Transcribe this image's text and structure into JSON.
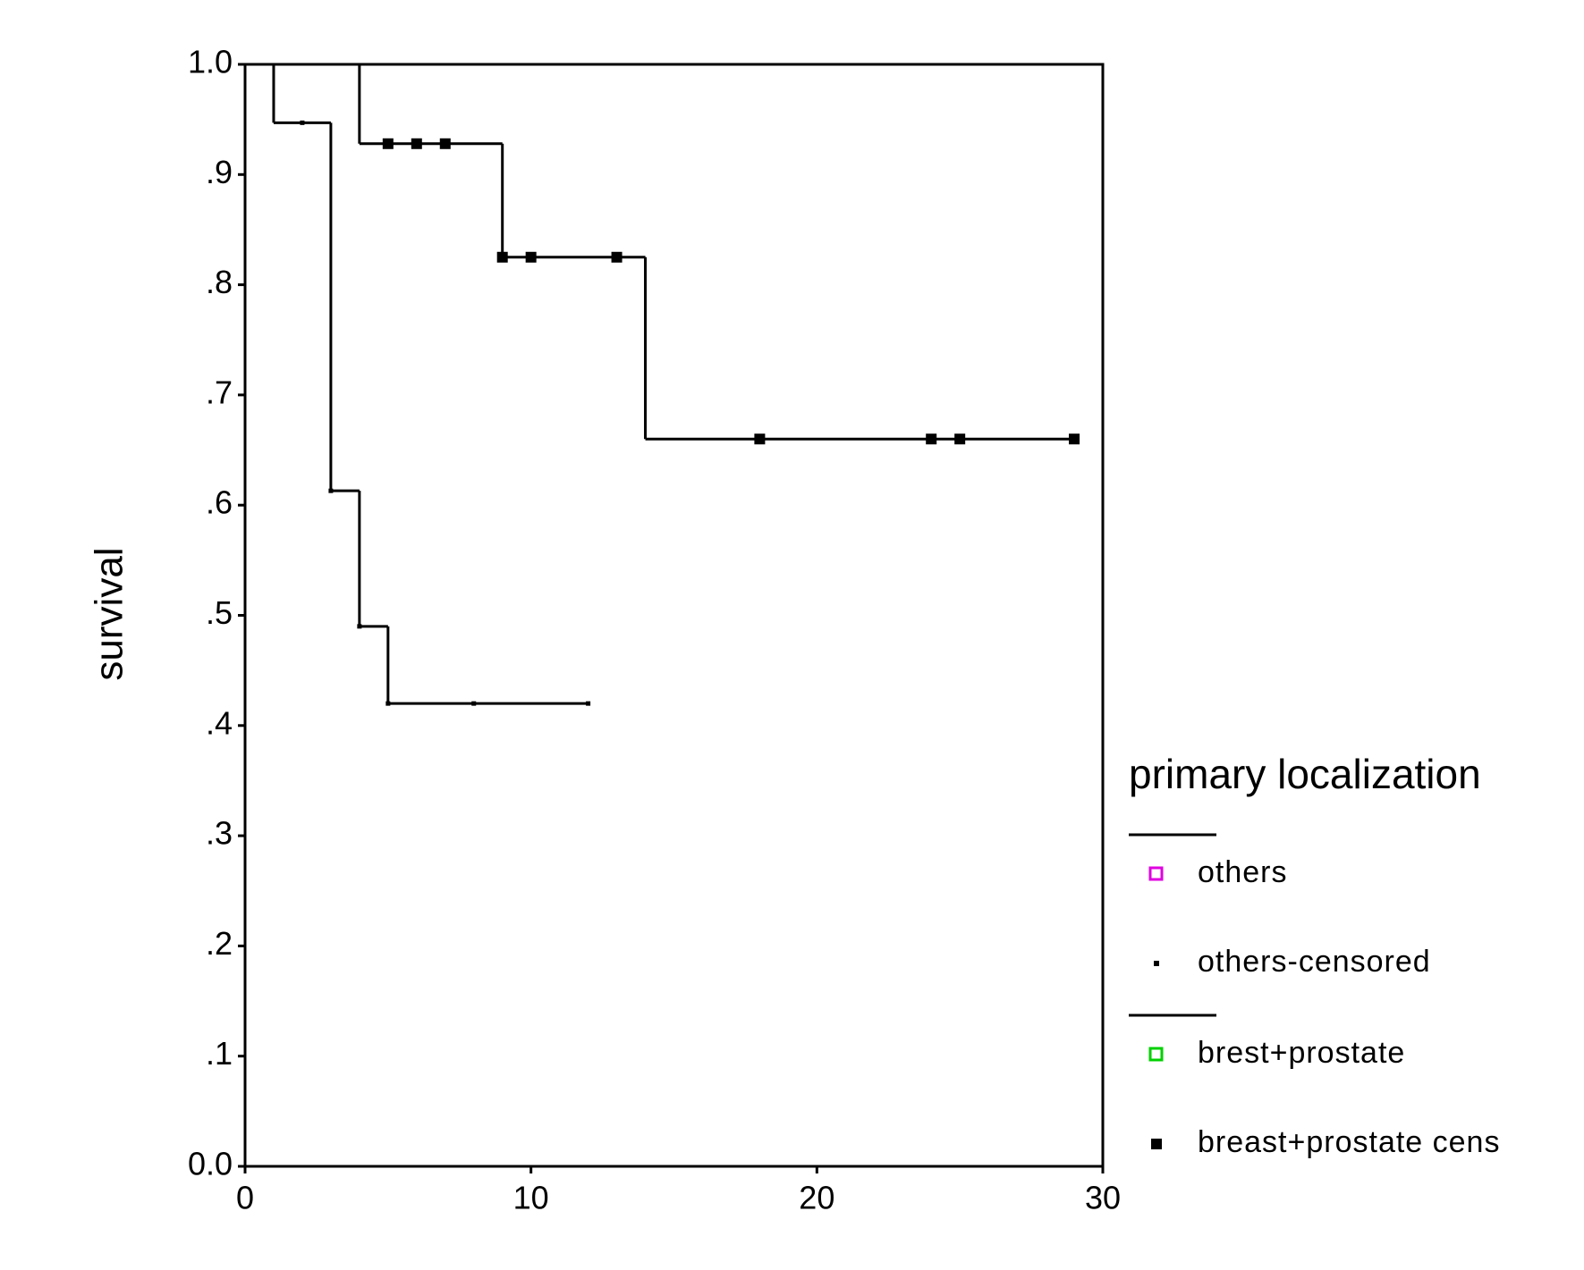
{
  "chart_data": {
    "type": "step",
    "y_label": "survival",
    "legend_title": "primary localization",
    "xlim": [
      0,
      30
    ],
    "ylim": [
      0,
      1
    ],
    "xticks": [
      0,
      10,
      20,
      30
    ],
    "yticks": [
      {
        "value": 0,
        "label": "0.0"
      },
      {
        "value": 0.1,
        "label": ".1"
      },
      {
        "value": 0.2,
        "label": ".2"
      },
      {
        "value": 0.3,
        "label": ".3"
      },
      {
        "value": 0.4,
        "label": ".4"
      },
      {
        "value": 0.5,
        "label": ".5"
      },
      {
        "value": 0.6,
        "label": ".6"
      },
      {
        "value": 0.7,
        "label": ".7"
      },
      {
        "value": 0.8,
        "label": ".8"
      },
      {
        "value": 0.9,
        "label": ".9"
      },
      {
        "value": 1,
        "label": "1.0"
      }
    ],
    "series": [
      {
        "name": "others",
        "kind": "curve",
        "color": "#000000",
        "legend_color": "#e000e0",
        "x": [
          0,
          1,
          3,
          4,
          5,
          12
        ],
        "values": [
          1.0,
          0.947,
          0.613,
          0.49,
          0.42,
          0.42
        ]
      },
      {
        "name": "others-censored",
        "kind": "censored-dot",
        "color": "#000000",
        "x": [
          2,
          3,
          4,
          5,
          8,
          12
        ],
        "values": [
          0.947,
          0.613,
          0.49,
          0.42,
          0.42,
          0.42
        ]
      },
      {
        "name": "brest+prostate",
        "kind": "curve",
        "color": "#000000",
        "legend_color": "#00d000",
        "x": [
          0,
          4,
          9,
          14,
          29
        ],
        "values": [
          1.0,
          0.928,
          0.825,
          0.66,
          0.66
        ]
      },
      {
        "name": "breast+prostate cens",
        "kind": "censored-square",
        "color": "#000000",
        "x": [
          5,
          6,
          7,
          9,
          10,
          13,
          18,
          24,
          25,
          29
        ],
        "values": [
          0.928,
          0.928,
          0.928,
          0.825,
          0.825,
          0.825,
          0.66,
          0.66,
          0.66,
          0.66
        ]
      }
    ]
  }
}
